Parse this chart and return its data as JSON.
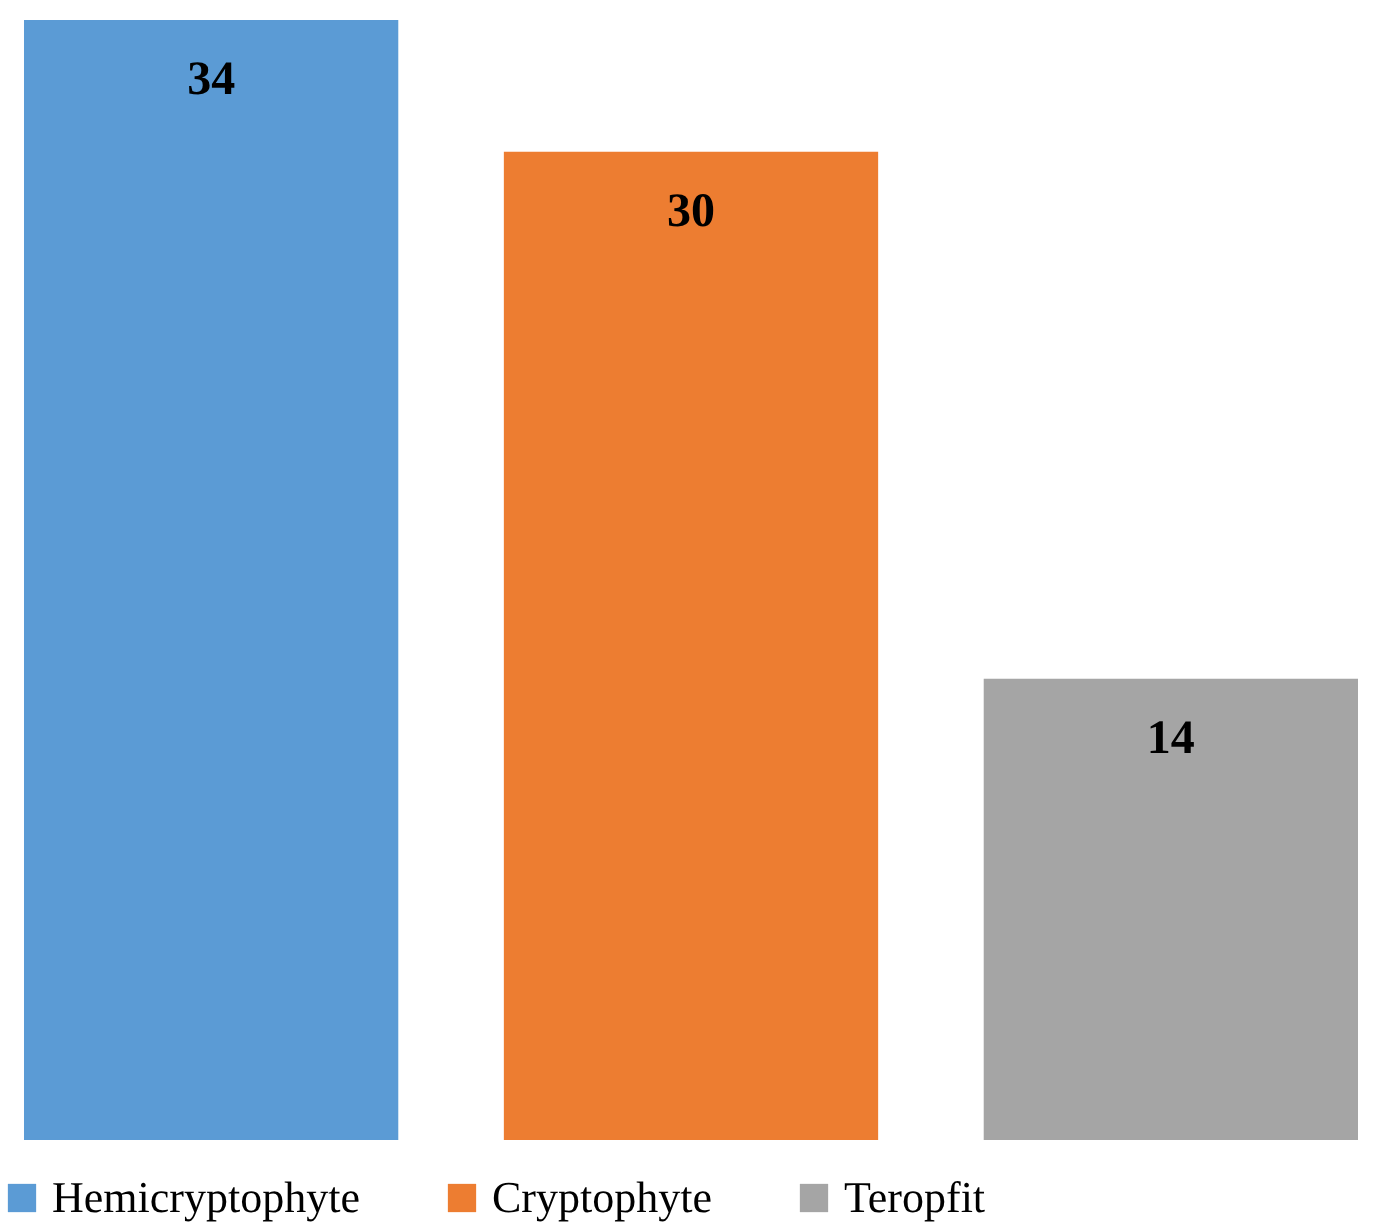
{
  "chart_data": {
    "type": "bar",
    "categories": [
      null
    ],
    "series": [
      {
        "name": "Hemicryptophyte",
        "color": "#5b9bd5",
        "values": [
          34
        ]
      },
      {
        "name": "Cryptophyte",
        "color": "#ed7d31",
        "values": [
          30
        ]
      },
      {
        "name": "Teropfit",
        "color": "#a5a5a5",
        "values": [
          14
        ]
      }
    ],
    "data_labels": true,
    "legend": "bottom",
    "grid": false
  }
}
